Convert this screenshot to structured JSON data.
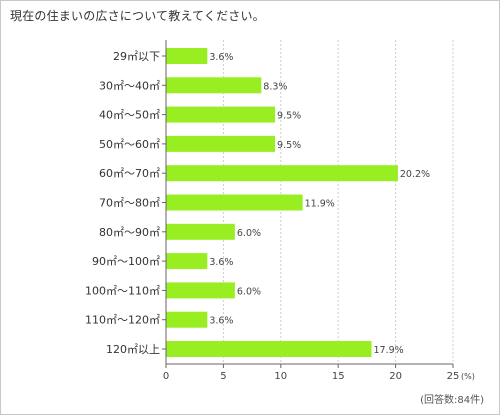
{
  "title": "現在の住まいの広さについて教えてください。",
  "note": "(回答数:84件)",
  "colors": {
    "bar": "#99ee22",
    "grid": "#cccccc",
    "axis": "#666666",
    "text": "#333333"
  },
  "chart_data": {
    "type": "bar",
    "orientation": "horizontal",
    "title": "現在の住まいの広さについて教えてください。",
    "categories": [
      "29㎡以下",
      "30㎡～40㎡",
      "40㎡～50㎡",
      "50㎡～60㎡",
      "60㎡～70㎡",
      "70㎡～80㎡",
      "80㎡～90㎡",
      "90㎡～100㎡",
      "100㎡～110㎡",
      "110㎡～120㎡",
      "120㎡以上"
    ],
    "values": [
      3.6,
      8.3,
      9.5,
      9.5,
      20.2,
      11.9,
      6.0,
      3.6,
      6.0,
      3.6,
      17.9
    ],
    "value_labels": [
      "3.6%",
      "8.3%",
      "9.5%",
      "9.5%",
      "20.2%",
      "11.9%",
      "6.0%",
      "3.6%",
      "6.0%",
      "3.6%",
      "17.9%"
    ],
    "xlim": [
      0,
      25
    ],
    "xticks": [
      0,
      5,
      10,
      15,
      20,
      25
    ],
    "xtick_labels": [
      "0",
      "5",
      "10",
      "15",
      "20",
      "25"
    ],
    "x_unit": "(%)",
    "grid": true
  }
}
